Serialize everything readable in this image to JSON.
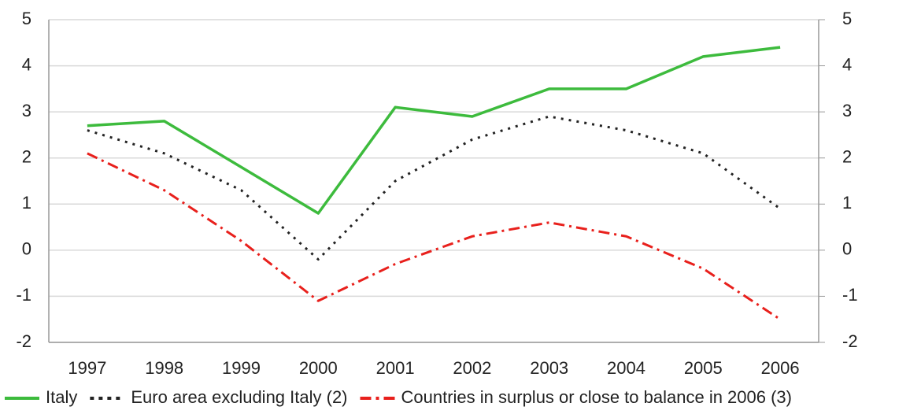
{
  "chart_data": {
    "type": "line",
    "categories": [
      "1997",
      "1998",
      "1999",
      "2000",
      "2001",
      "2002",
      "2003",
      "2004",
      "2005",
      "2006"
    ],
    "series": [
      {
        "name": "Italy",
        "color": "#3dbb3d",
        "dash": "solid",
        "values": [
          2.7,
          2.8,
          1.8,
          0.8,
          3.1,
          2.9,
          3.5,
          3.5,
          4.2,
          4.4
        ]
      },
      {
        "name": "Euro area excluding Italy (2)",
        "color": "#222222",
        "dash": "dot",
        "values": [
          2.6,
          2.1,
          1.3,
          -0.2,
          1.5,
          2.4,
          2.9,
          2.6,
          2.1,
          0.9
        ]
      },
      {
        "name": "Countries in surplus or close to balance in 2006 (3)",
        "color": "#e8201c",
        "dash": "dashdot",
        "values": [
          2.1,
          1.3,
          0.2,
          -1.1,
          -0.3,
          0.3,
          0.6,
          0.3,
          -0.4,
          -1.5
        ]
      }
    ],
    "ylim": [
      -2,
      5
    ],
    "yticks": [
      -2,
      -1,
      0,
      1,
      2,
      3,
      4,
      5
    ],
    "y2lim": [
      -2,
      5
    ],
    "y2ticks": [
      -2,
      -1,
      0,
      1,
      2,
      3,
      4,
      5
    ],
    "grid": true,
    "legend": "bottom"
  }
}
